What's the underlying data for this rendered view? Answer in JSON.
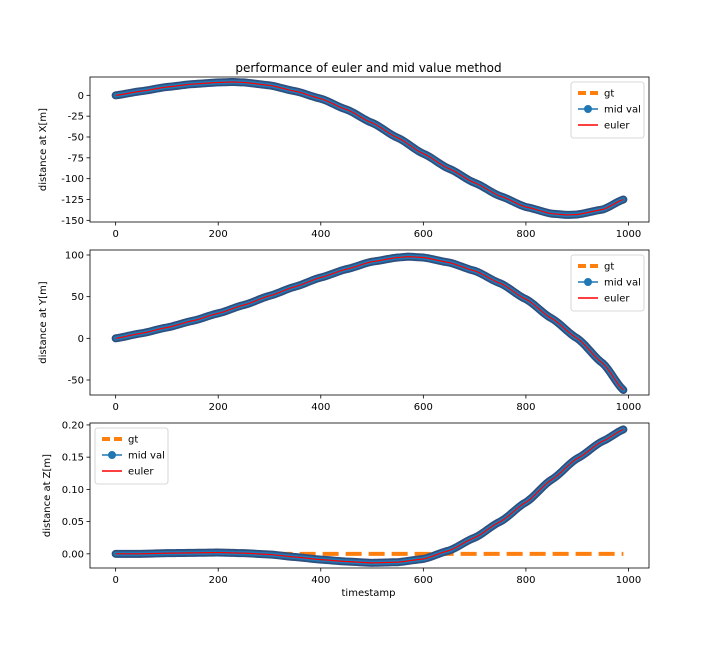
{
  "figure": {
    "title": "performance of euler and mid value method",
    "xlabel": "timestamp"
  },
  "colors": {
    "gt": "#ff7f0e",
    "mid": "#1f77b4",
    "mid_edge": "#2f4f7f",
    "euler": "#ff0000"
  },
  "chart_data": [
    {
      "type": "line",
      "ylabel": "distance at X[m]",
      "xlim": [
        -50,
        1040
      ],
      "ylim": [
        -152,
        22
      ],
      "xticks": [
        0,
        200,
        400,
        600,
        800,
        1000
      ],
      "yticks": [
        -150,
        -125,
        -100,
        -75,
        -50,
        -25,
        0
      ],
      "legend_position": "upper right",
      "legend": [
        "gt",
        "mid val",
        "euler"
      ],
      "x": [
        0,
        50,
        100,
        150,
        200,
        230,
        250,
        300,
        350,
        400,
        450,
        500,
        550,
        600,
        650,
        700,
        750,
        800,
        850,
        880,
        900,
        950,
        990
      ],
      "series": [
        {
          "name": "gt",
          "style": "dashed",
          "values": [
            0,
            5,
            10,
            13.5,
            15.5,
            16,
            15.5,
            12,
            5,
            -4,
            -17,
            -33,
            -51,
            -70,
            -88,
            -105,
            -121,
            -134,
            -142,
            -143.5,
            -143,
            -137,
            -125
          ]
        },
        {
          "name": "mid val",
          "style": "line-marker",
          "values": [
            0,
            5,
            10,
            13.5,
            15.5,
            16,
            15.5,
            12,
            5,
            -4,
            -17,
            -33,
            -51,
            -70,
            -88,
            -105,
            -121,
            -134,
            -142,
            -143.5,
            -143,
            -137,
            -125
          ]
        },
        {
          "name": "euler",
          "style": "line",
          "values": [
            0,
            5,
            10,
            13.5,
            15.5,
            16,
            15.5,
            12,
            5,
            -4,
            -17,
            -33,
            -51,
            -70,
            -88,
            -105,
            -121,
            -134,
            -142,
            -143.5,
            -143,
            -137,
            -125
          ]
        }
      ]
    },
    {
      "type": "line",
      "ylabel": "distance at Y[m]",
      "xlim": [
        -50,
        1040
      ],
      "ylim": [
        -68,
        106
      ],
      "xticks": [
        0,
        200,
        400,
        600,
        800,
        1000
      ],
      "yticks": [
        -50,
        0,
        50,
        100
      ],
      "legend_position": "upper right",
      "legend": [
        "gt",
        "mid val",
        "euler"
      ],
      "x": [
        0,
        50,
        100,
        150,
        200,
        250,
        300,
        350,
        400,
        450,
        500,
        550,
        570,
        600,
        650,
        700,
        750,
        800,
        850,
        900,
        950,
        990
      ],
      "series": [
        {
          "name": "gt",
          "style": "dashed",
          "values": [
            0,
            6,
            13,
            21,
            30,
            40,
            51,
            62,
            73,
            83,
            92,
            97,
            98,
            97,
            91,
            81,
            66,
            47,
            24,
            0,
            -30,
            -62
          ]
        },
        {
          "name": "mid val",
          "style": "line-marker",
          "values": [
            0,
            6,
            13,
            21,
            30,
            40,
            51,
            62,
            73,
            83,
            92,
            97,
            98,
            97,
            91,
            81,
            66,
            47,
            24,
            0,
            -30,
            -62
          ]
        },
        {
          "name": "euler",
          "style": "line",
          "values": [
            0,
            6,
            13,
            21,
            30,
            40,
            51,
            62,
            73,
            83,
            92,
            97,
            98,
            97,
            91,
            81,
            66,
            47,
            24,
            0,
            -30,
            -62
          ]
        }
      ]
    },
    {
      "type": "line",
      "ylabel": "distance at Z[m]",
      "xlim": [
        -50,
        1040
      ],
      "ylim": [
        -0.022,
        0.203
      ],
      "xticks": [
        0,
        200,
        400,
        600,
        800,
        1000
      ],
      "yticks": [
        0.0,
        0.05,
        0.1,
        0.15,
        0.2
      ],
      "legend_position": "upper left",
      "legend": [
        "gt",
        "mid val",
        "euler"
      ],
      "x": [
        0,
        50,
        100,
        150,
        200,
        250,
        300,
        350,
        400,
        450,
        500,
        550,
        600,
        650,
        700,
        750,
        800,
        850,
        900,
        950,
        990
      ],
      "series": [
        {
          "name": "gt",
          "style": "dashed",
          "values": [
            0,
            0,
            0,
            0,
            0,
            0,
            0,
            0,
            0,
            0,
            0,
            0,
            0,
            0,
            0,
            0,
            0,
            0,
            0,
            0,
            0
          ]
        },
        {
          "name": "mid val",
          "style": "line-marker",
          "values": [
            0,
            0,
            0.001,
            0.0015,
            0.002,
            0.001,
            -0.001,
            -0.005,
            -0.009,
            -0.012,
            -0.014,
            -0.013,
            -0.008,
            0.005,
            0.025,
            0.05,
            0.08,
            0.115,
            0.148,
            0.175,
            0.193
          ]
        },
        {
          "name": "euler",
          "style": "line",
          "values": [
            0,
            0,
            0.001,
            0.0015,
            0.002,
            0.001,
            -0.001,
            -0.005,
            -0.009,
            -0.012,
            -0.014,
            -0.013,
            -0.008,
            0.005,
            0.025,
            0.05,
            0.08,
            0.115,
            0.148,
            0.175,
            0.193
          ]
        }
      ]
    }
  ]
}
